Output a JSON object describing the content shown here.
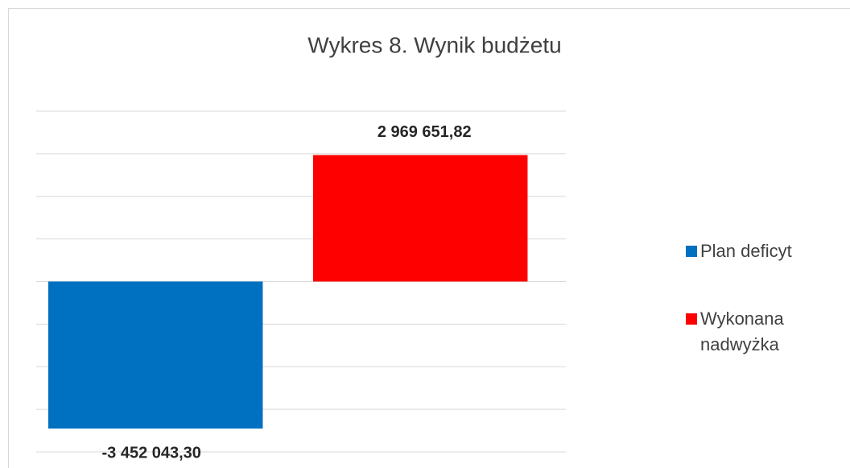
{
  "chart_data": {
    "type": "bar",
    "title": "Wykres 8. Wynik budżetu",
    "series": [
      {
        "name": "Plan deficyt",
        "color": "#0070c0",
        "values": [
          -3452043.3
        ],
        "value_labels": [
          "-3 452 043,30"
        ]
      },
      {
        "name": "Wykonana nadwyżka",
        "color": "#ff0000",
        "values": [
          2969651.82
        ],
        "value_labels": [
          "2 969 651,82"
        ]
      }
    ],
    "ylim": [
      -4000000,
      4000000
    ],
    "yticks": [
      -4000000,
      -3000000,
      -2000000,
      -1000000,
      0,
      1000000,
      2000000,
      3000000,
      4000000
    ],
    "grid": true,
    "legend": "right"
  }
}
